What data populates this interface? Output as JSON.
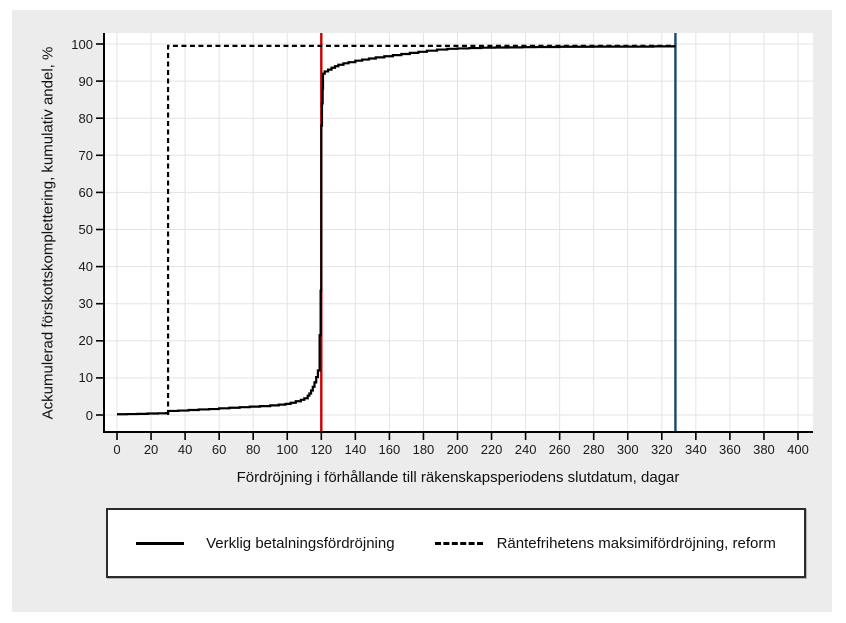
{
  "figure": {
    "background_color": "#ececec",
    "plot_background_color": "#ffffff",
    "gridline_color": "#e3e3e3",
    "axis_color": "#000000",
    "tick_text_color": "#1a1a1a"
  },
  "chart_data": {
    "type": "line",
    "title": "",
    "xlabel": "Fördröjning i förhållande till räkenskapsperiodens slutdatum, dagar",
    "ylabel": "Ackumulerad förskottskomplettering, kumulativ andel, %",
    "xlim": [
      0,
      400
    ],
    "ylim": [
      0,
      100
    ],
    "x_ticks": [
      0,
      20,
      40,
      60,
      80,
      100,
      120,
      140,
      160,
      180,
      200,
      220,
      240,
      260,
      280,
      300,
      320,
      340,
      360,
      380,
      400
    ],
    "y_ticks": [
      0,
      10,
      20,
      30,
      40,
      50,
      60,
      70,
      80,
      90,
      100
    ],
    "grid": true,
    "legend_position": "bottom",
    "series": [
      {
        "name": "Verklig betalningsfördröjning",
        "style": "solid",
        "color": "#000000",
        "step": true,
        "points": [
          [
            0,
            0.2
          ],
          [
            6,
            0.25
          ],
          [
            12,
            0.3
          ],
          [
            18,
            0.4
          ],
          [
            24,
            0.45
          ],
          [
            29,
            0.5
          ],
          [
            30,
            1.1
          ],
          [
            36,
            1.2
          ],
          [
            42,
            1.35
          ],
          [
            48,
            1.5
          ],
          [
            54,
            1.6
          ],
          [
            60,
            1.8
          ],
          [
            66,
            1.95
          ],
          [
            72,
            2.1
          ],
          [
            78,
            2.25
          ],
          [
            84,
            2.4
          ],
          [
            90,
            2.6
          ],
          [
            95,
            2.8
          ],
          [
            99,
            3.0
          ],
          [
            102,
            3.3
          ],
          [
            105,
            3.7
          ],
          [
            108,
            4.1
          ],
          [
            110,
            4.5
          ],
          [
            112,
            5.2
          ],
          [
            113,
            5.8
          ],
          [
            114,
            6.6
          ],
          [
            115,
            7.6
          ],
          [
            116,
            8.8
          ],
          [
            117,
            10.2
          ],
          [
            118,
            12.0
          ],
          [
            119,
            21.5
          ],
          [
            119.6,
            33.5
          ],
          [
            120,
            78.0
          ],
          [
            120.4,
            84.0
          ],
          [
            120.8,
            88.0
          ],
          [
            121,
            92.0
          ],
          [
            122,
            92.6
          ],
          [
            124,
            93.1
          ],
          [
            126,
            93.6
          ],
          [
            128,
            94.0
          ],
          [
            130,
            94.4
          ],
          [
            133,
            94.8
          ],
          [
            136,
            95.1
          ],
          [
            140,
            95.5
          ],
          [
            144,
            95.8
          ],
          [
            148,
            96.1
          ],
          [
            152,
            96.4
          ],
          [
            157,
            96.7
          ],
          [
            162,
            97.0
          ],
          [
            167,
            97.3
          ],
          [
            172,
            97.6
          ],
          [
            177,
            97.9
          ],
          [
            182,
            98.2
          ],
          [
            188,
            98.5
          ],
          [
            194,
            98.7
          ],
          [
            200,
            98.8
          ],
          [
            207,
            98.9
          ],
          [
            214,
            99.0
          ],
          [
            222,
            99.05
          ],
          [
            230,
            99.1
          ],
          [
            238,
            99.15
          ],
          [
            246,
            99.2
          ],
          [
            260,
            99.25
          ],
          [
            280,
            99.3
          ],
          [
            300,
            99.3
          ],
          [
            315,
            99.35
          ],
          [
            327,
            99.4
          ],
          [
            328,
            99.4
          ]
        ]
      },
      {
        "name": "Räntefrihetens maksimifördröjning, reform",
        "style": "dashed",
        "color": "#000000",
        "step": true,
        "points": [
          [
            30,
            0
          ],
          [
            30,
            99.5
          ],
          [
            328,
            99.5
          ]
        ]
      }
    ],
    "reference_lines": [
      {
        "axis": "x",
        "value": 120,
        "color": "#cc0000",
        "name": "red-reference-line"
      },
      {
        "axis": "x",
        "value": 328,
        "color": "#1a476f",
        "name": "navy-reference-line"
      }
    ]
  },
  "legend": {
    "entries": [
      {
        "label": "Verklig betalningsfördröjning",
        "line_style": "solid"
      },
      {
        "label": "Räntefrihetens maksimifördröjning, reform",
        "line_style": "dashed"
      }
    ]
  }
}
